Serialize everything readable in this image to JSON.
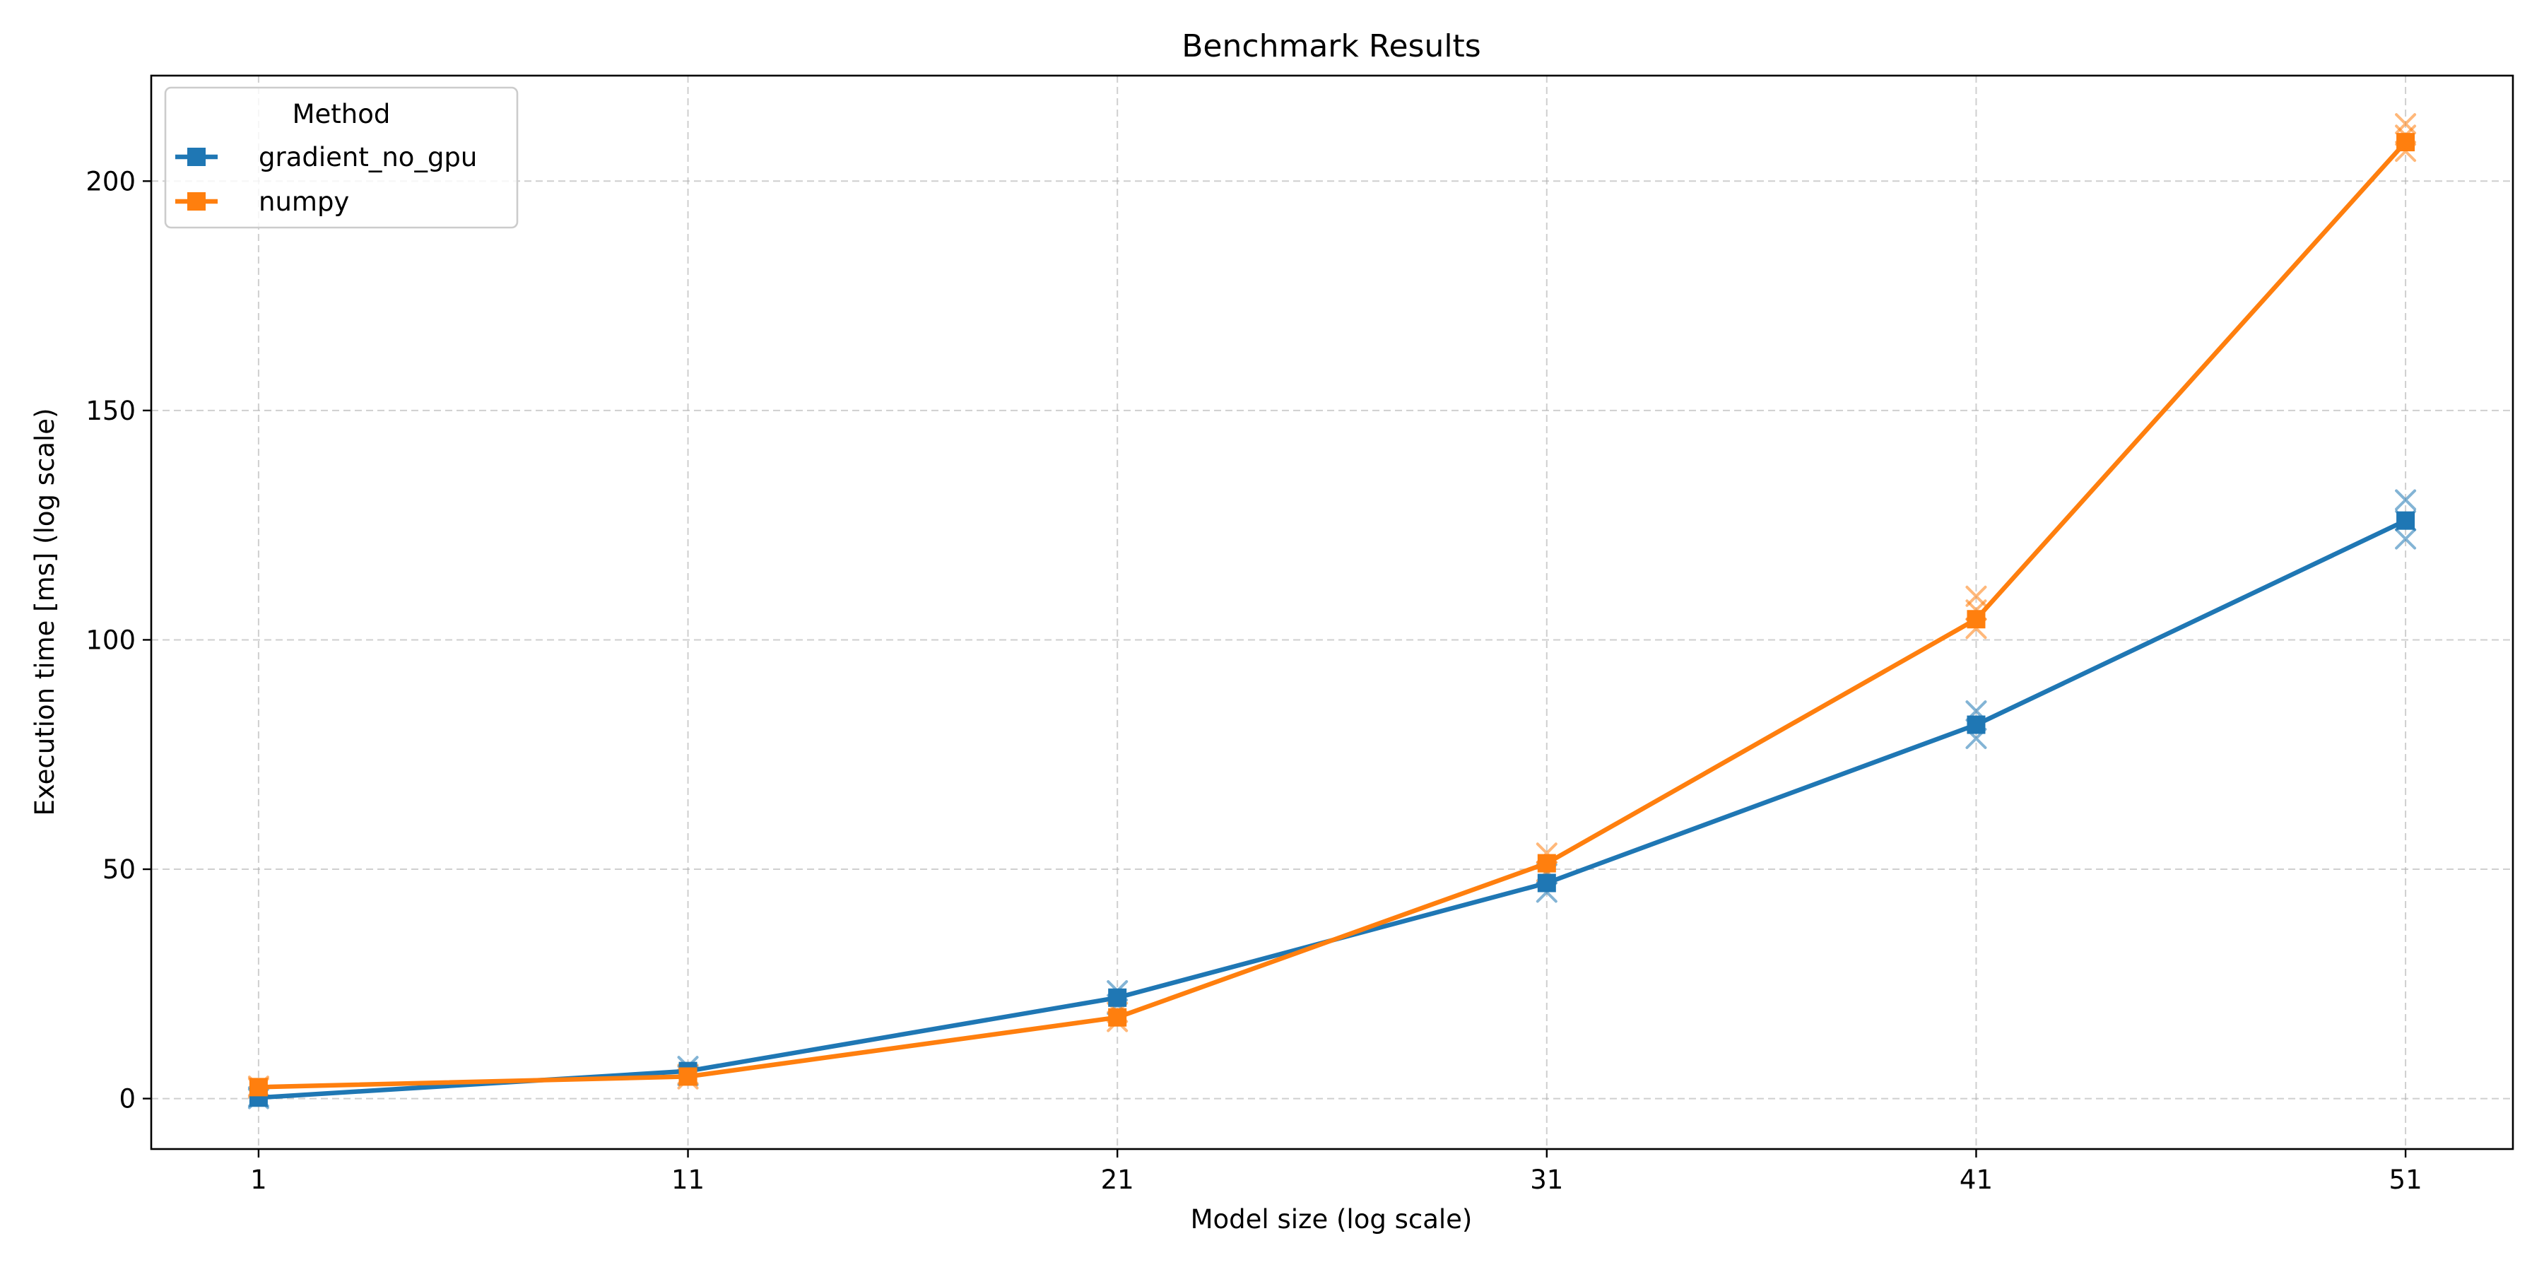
{
  "chart_data": {
    "type": "line",
    "title": "Benchmark Results",
    "xlabel": "Model size (log scale)",
    "ylabel": "Execution time [ms] (log scale)",
    "x": [
      1,
      11,
      21,
      31,
      41,
      51
    ],
    "xticks": [
      "1",
      "11",
      "21",
      "31",
      "41",
      "51"
    ],
    "yticks": [
      "0",
      "50",
      "100",
      "150",
      "200"
    ],
    "ytick_values": [
      0,
      50,
      100,
      150,
      200
    ],
    "xlim": [
      -1.5,
      53.5
    ],
    "ylim": [
      -11,
      223
    ],
    "grid": true,
    "legend": {
      "title": "Method",
      "position": "top-left"
    },
    "series": [
      {
        "name": "gradient_no_gpu",
        "color": "#1f77b4",
        "marker": "square",
        "values": [
          0.2,
          6.0,
          22.0,
          47.0,
          81.5,
          126.0
        ]
      },
      {
        "name": "numpy",
        "color": "#ff7f0e",
        "marker": "square",
        "values": [
          2.5,
          4.8,
          17.7,
          51.3,
          104.5,
          208.5
        ]
      }
    ],
    "repeat_markers": {
      "marker": "x",
      "series": [
        {
          "name": "gradient_no_gpu",
          "color": "#1f77b4",
          "points": [
            [
              1,
              0.0
            ],
            [
              1,
              0.4
            ],
            [
              11,
              5.0
            ],
            [
              11,
              7.0
            ],
            [
              21,
              20.5
            ],
            [
              21,
              23.5
            ],
            [
              31,
              45.0
            ],
            [
              31,
              49.0
            ],
            [
              41,
              78.5
            ],
            [
              41,
              84.5
            ],
            [
              51,
              122.0
            ],
            [
              51,
              126.0
            ],
            [
              51,
              130.5
            ]
          ]
        },
        {
          "name": "numpy",
          "color": "#ff7f0e",
          "points": [
            [
              1,
              2.3
            ],
            [
              1,
              2.7
            ],
            [
              11,
              4.3
            ],
            [
              11,
              5.3
            ],
            [
              21,
              16.8
            ],
            [
              21,
              18.8
            ],
            [
              31,
              49.5
            ],
            [
              31,
              53.5
            ],
            [
              41,
              102.5
            ],
            [
              41,
              106.5
            ],
            [
              41,
              109.5
            ],
            [
              51,
              206.5
            ],
            [
              51,
              210.0
            ],
            [
              51,
              212.5
            ]
          ]
        }
      ]
    }
  }
}
